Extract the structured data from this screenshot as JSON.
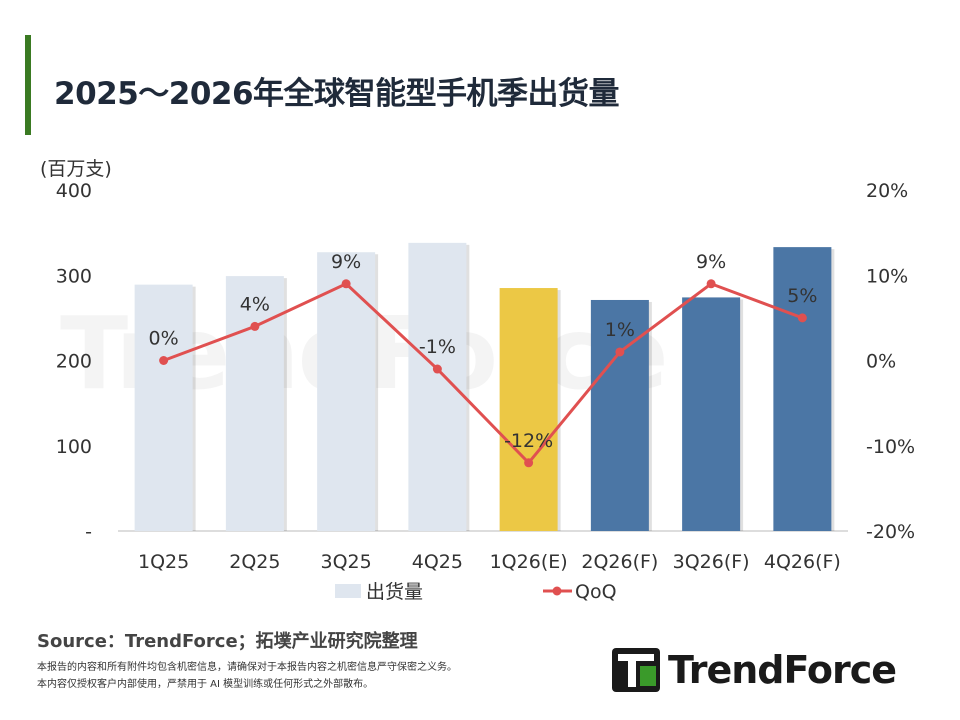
{
  "title": "2025～2026年全球智能型手机季出货量",
  "chart_data": {
    "type": "bar+line",
    "title": "2025～2026年全球智能型手机季出货量",
    "ylabel": "(百万支)",
    "categories": [
      "1Q25",
      "2Q25",
      "3Q25",
      "4Q25",
      "1Q26(E)",
      "2Q26(F)",
      "3Q26(F)",
      "4Q26(F)"
    ],
    "series": [
      {
        "name": "出货量",
        "type": "bar",
        "axis": "left",
        "values": [
          289,
          299,
          327,
          338,
          285,
          271,
          274,
          333
        ],
        "colors": [
          "#dfe6ef",
          "#dfe6ef",
          "#dfe6ef",
          "#dfe6ef",
          "#ecc845",
          "#4b76a5",
          "#4b76a5",
          "#4b76a5"
        ]
      },
      {
        "name": "QoQ",
        "type": "line",
        "axis": "right",
        "values": [
          0,
          4,
          9,
          -1,
          -12,
          1,
          9,
          5
        ],
        "labels": [
          "0%",
          "4%",
          "9%",
          "-1%",
          "-12%",
          "1%",
          "9%",
          "5%"
        ],
        "color": "#e05050"
      }
    ],
    "ylim": [
      0,
      400
    ],
    "yticks": [
      "-",
      "100",
      "200",
      "300",
      "400"
    ],
    "y2lim": [
      -20,
      20
    ],
    "y2ticks": [
      "-20%",
      "-10%",
      "0%",
      "10%",
      "20%"
    ],
    "legend": "bottom",
    "grid": false
  },
  "watermark": "TrendForce",
  "source": "Source：TrendForce；拓墣产业研究院整理",
  "notes": [
    "本报告的内容和所有附件均包含机密信息，请确保对于本报告内容之机密信息严守保密之义务。",
    "本内容仅授权客户内部使用，严禁用于 AI 模型训练或任何形式之外部散布。"
  ],
  "logo": "TrendForce"
}
